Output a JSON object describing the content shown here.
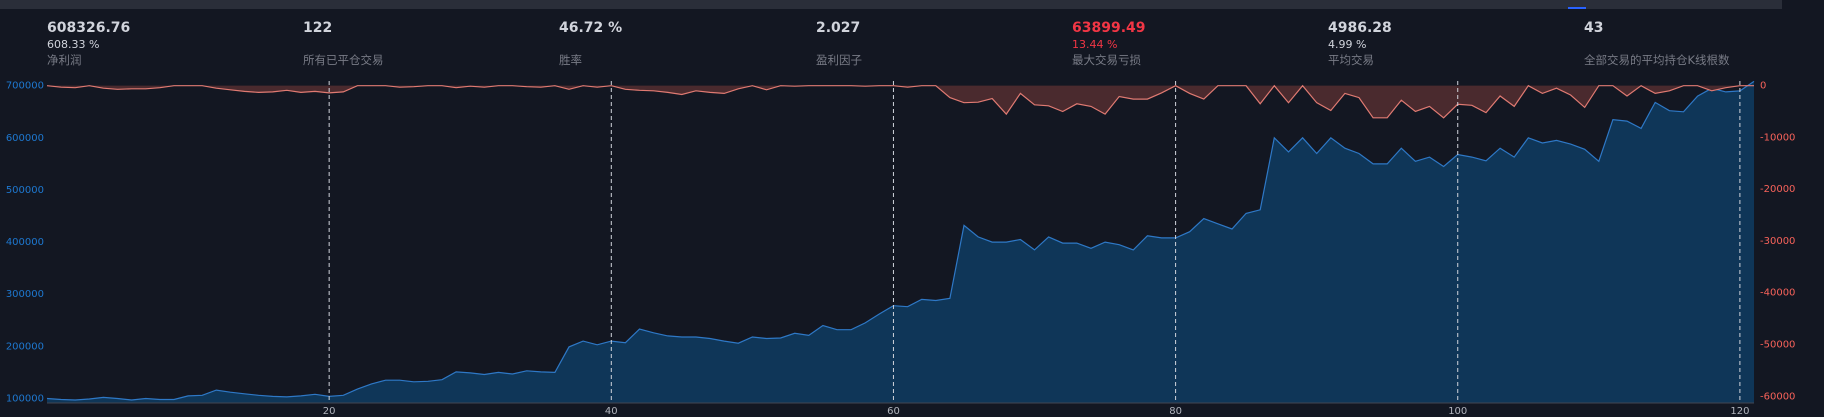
{
  "stats": [
    {
      "value": "608326.76",
      "sub": "608.33 %",
      "label": "净利润"
    },
    {
      "value": "122",
      "label": "所有已平仓交易"
    },
    {
      "value": "46.72 %",
      "label": "胜率"
    },
    {
      "value": "2.027",
      "label": "盈利因子"
    },
    {
      "value": "63899.49",
      "sub": "13.44 %",
      "label": "最大交易亏损",
      "color": "#f23645"
    },
    {
      "value": "4986.28",
      "sub": "4.99 %",
      "label": "平均交易"
    },
    {
      "value": "43",
      "label": "全部交易的平均持仓K线根数"
    }
  ],
  "chart_data": {
    "type": "area",
    "x": [
      0,
      1,
      2,
      3,
      4,
      5,
      6,
      7,
      8,
      9,
      10,
      11,
      12,
      13,
      14,
      15,
      16,
      17,
      18,
      19,
      20,
      21,
      22,
      23,
      24,
      25,
      26,
      27,
      28,
      29,
      30,
      31,
      32,
      33,
      34,
      35,
      36,
      37,
      38,
      39,
      40,
      41,
      42,
      43,
      44,
      45,
      46,
      47,
      48,
      49,
      50,
      51,
      52,
      53,
      54,
      55,
      56,
      57,
      58,
      59,
      60,
      61,
      62,
      63,
      64,
      65,
      66,
      67,
      68,
      69,
      70,
      71,
      72,
      73,
      74,
      75,
      76,
      77,
      78,
      79,
      80,
      81,
      82,
      83,
      84,
      85,
      86,
      87,
      88,
      89,
      90,
      91,
      92,
      93,
      94,
      95,
      96,
      97,
      98,
      99,
      100,
      101,
      102,
      103,
      104,
      105,
      106,
      107,
      108,
      109,
      110,
      111,
      112,
      113,
      114,
      115,
      116,
      117,
      118,
      119,
      120,
      121
    ],
    "xlim": [
      0,
      121
    ],
    "xticks": [
      20,
      40,
      60,
      80,
      100,
      120
    ],
    "ylim": [
      91300,
      709000
    ],
    "yticks": [
      100000,
      200000,
      300000,
      400000,
      500000,
      600000,
      700000
    ],
    "y2lim": [
      -61300,
      900
    ],
    "y2ticks": [
      0,
      -10000,
      -20000,
      -30000,
      -40000,
      -50000,
      -60000
    ],
    "series": [
      {
        "color": "#2e78c6",
        "fill": "#0f3658",
        "values": [
          100000,
          98000,
          97000,
          99000,
          102000,
          100000,
          97000,
          100000,
          98000,
          98000,
          105000,
          106000,
          116000,
          112000,
          109000,
          106000,
          104000,
          103000,
          105000,
          108000,
          104000,
          106000,
          118000,
          128000,
          135000,
          135000,
          132000,
          133000,
          136000,
          151000,
          149000,
          146000,
          150000,
          147000,
          153000,
          151000,
          150000,
          199000,
          210000,
          203000,
          210000,
          207000,
          233000,
          226000,
          220000,
          218000,
          218000,
          215000,
          210000,
          206000,
          218000,
          215000,
          216000,
          225000,
          221000,
          240000,
          232000,
          232000,
          245000,
          262000,
          278000,
          276000,
          290000,
          288000,
          292000,
          432000,
          410000,
          400000,
          400000,
          405000,
          385000,
          410000,
          398000,
          398000,
          388000,
          400000,
          395000,
          385000,
          412000,
          408000,
          408000,
          420000,
          445000,
          435000,
          425000,
          455000,
          462000,
          600000,
          573000,
          600000,
          570000,
          600000,
          580000,
          570000,
          550000,
          550000,
          580000,
          555000,
          563000,
          545000,
          568000,
          563000,
          556000,
          580000,
          563000,
          600000,
          590000,
          595000,
          588000,
          578000,
          555000,
          635000,
          632000,
          618000,
          668000,
          652000,
          650000,
          680000,
          695000,
          688000,
          690000,
          708326.76
        ]
      },
      {
        "axis": "y2",
        "color": "#e07a72",
        "fill": "#4a2a2e",
        "values": [
          0,
          -300,
          -400,
          0,
          -500,
          -700,
          -600,
          -600,
          -400,
          0,
          0,
          0,
          -500,
          -800,
          -1100,
          -1300,
          -1200,
          -900,
          -1300,
          -1100,
          -1400,
          -1200,
          0,
          0,
          0,
          -300,
          -200,
          0,
          0,
          -400,
          -100,
          -300,
          0,
          0,
          -200,
          -300,
          0,
          -700,
          0,
          -300,
          0,
          -700,
          -900,
          -1000,
          -1300,
          -1700,
          -1000,
          -1300,
          -1500,
          -600,
          0,
          -800,
          0,
          -100,
          0,
          0,
          0,
          0,
          -100,
          0,
          0,
          -300,
          0,
          0,
          -2300,
          -3300,
          -3200,
          -2500,
          -5500,
          -1500,
          -3700,
          -3900,
          -5000,
          -3500,
          -4000,
          -5500,
          -2100,
          -2600,
          -2600,
          -1400,
          0,
          -1500,
          -2600,
          0,
          0,
          0,
          -3500,
          0,
          -3300,
          0,
          -3300,
          -4800,
          -1500,
          -2300,
          -6200,
          -6200,
          -2800,
          -5000,
          -4000,
          -6200,
          -3600,
          -3800,
          -5200,
          -2000,
          -4000,
          0,
          -1500,
          -500,
          -1800,
          -4200,
          0,
          0,
          -2000,
          0,
          -1500,
          -1000,
          0,
          0,
          -1000,
          -400,
          0,
          0
        ]
      }
    ]
  }
}
